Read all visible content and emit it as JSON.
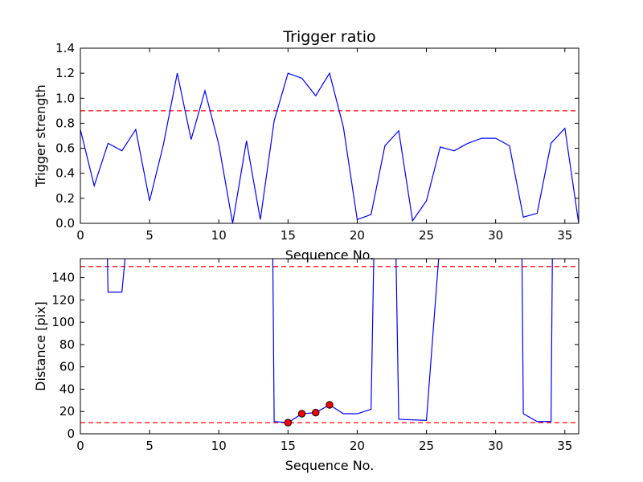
{
  "chart_data": [
    {
      "type": "line",
      "title": "Trigger ratio",
      "xlabel": "Sequence No.",
      "ylabel": "Trigger strength",
      "xlim": [
        0,
        36
      ],
      "ylim": [
        0,
        1.4
      ],
      "xticks": [
        0,
        5,
        10,
        15,
        20,
        25,
        30,
        35
      ],
      "xtick_labels": [
        "0",
        "5",
        "10",
        "15",
        "20",
        "25",
        "30",
        "35"
      ],
      "yticks": [
        0,
        0.2,
        0.4,
        0.6,
        0.8,
        1.0,
        1.2,
        1.4
      ],
      "ytick_labels": [
        "0.0",
        "0.2",
        "0.4",
        "0.6",
        "0.8",
        "1.0",
        "1.2",
        "1.4"
      ],
      "grid": false,
      "line_color": "#0000ff",
      "threshold_color": "#ff0000",
      "thresholds": [
        0.9
      ],
      "series": [
        {
          "x": [
            0,
            1,
            2,
            3,
            4,
            5,
            6,
            7,
            8,
            9,
            10,
            11,
            12,
            13,
            14,
            15,
            16,
            17,
            18,
            19,
            20,
            21,
            22,
            23,
            24,
            25,
            26,
            27,
            28,
            29,
            30,
            31,
            32,
            33,
            34,
            35,
            36
          ],
          "values": [
            0.75,
            0.3,
            0.64,
            0.58,
            0.75,
            0.18,
            0.63,
            1.2,
            0.67,
            1.06,
            0.63,
            0.0,
            0.66,
            0.03,
            0.82,
            1.2,
            1.16,
            1.02,
            1.2,
            0.77,
            0.03,
            0.07,
            0.62,
            0.74,
            0.02,
            0.18,
            0.61,
            0.58,
            0.64,
            0.68,
            0.68,
            0.62,
            0.05,
            0.08,
            0.64,
            0.76,
            0.0
          ]
        }
      ]
    },
    {
      "type": "line",
      "title": "",
      "xlabel": "Sequence No.",
      "ylabel": "Distance [pix]",
      "xlim": [
        0,
        36
      ],
      "ylim": [
        0,
        157
      ],
      "xticks": [
        0,
        5,
        10,
        15,
        20,
        25,
        30,
        35
      ],
      "xtick_labels": [
        "0",
        "5",
        "10",
        "15",
        "20",
        "25",
        "30",
        "35"
      ],
      "yticks": [
        0,
        20,
        40,
        60,
        80,
        100,
        120,
        140
      ],
      "ytick_labels": [
        "0",
        "20",
        "40",
        "60",
        "80",
        "100",
        "120",
        "140"
      ],
      "grid": false,
      "line_color": "#0000ff",
      "threshold_color": "#ff0000",
      "marker_color": "#ff0000",
      "thresholds": [
        150,
        10
      ],
      "segments": [
        {
          "x": [
            1.95,
            2,
            3,
            3.25
          ],
          "values": [
            160,
            127,
            127,
            160
          ]
        },
        {
          "x": [
            13.9,
            14,
            15,
            16,
            17,
            18,
            19,
            20,
            21,
            21.2
          ],
          "values": [
            160,
            11,
            10,
            18,
            19,
            26,
            18,
            18,
            22,
            160
          ]
        },
        {
          "x": [
            22.8,
            23,
            24,
            25,
            25.9
          ],
          "values": [
            160,
            13,
            12.5,
            12,
            160
          ]
        },
        {
          "x": [
            31.9,
            32,
            33,
            34,
            34.1
          ],
          "values": [
            160,
            18,
            11,
            11,
            160
          ]
        }
      ],
      "markers": {
        "x": [
          15,
          16,
          17,
          18
        ],
        "values": [
          10,
          18,
          19,
          26
        ]
      }
    }
  ]
}
